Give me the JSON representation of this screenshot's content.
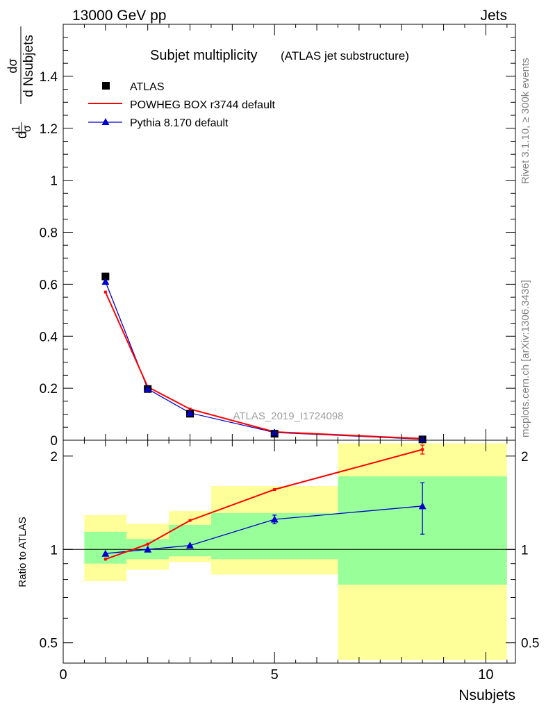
{
  "header": {
    "left": "13000 GeV pp",
    "right": "Jets"
  },
  "side": {
    "top": "Rivet 3.1.10, ≥ 300k events",
    "bottom": "mcplots.cern.ch [arXiv:1306.3436]"
  },
  "chart_data": {
    "type": "line",
    "title": "Subjet multiplicity",
    "subtitle": "(ATLAS jet substructure)",
    "watermark": "ATLAS_2019_I1724098",
    "xlabel": "Nsubjets",
    "ylabel": {
      "num1": "d",
      "frac1_num": "1",
      "frac1_den": "σ",
      "num2": "dσ",
      "den2": "d Nsubjets"
    },
    "ratio_ylabel": "Ratio to ATLAS",
    "xlim": [
      0,
      10.7
    ],
    "ylim": [
      0,
      1.6
    ],
    "ratio_ylim": [
      0.43,
      2.25
    ],
    "ratio_log": true,
    "x_ticks": [
      "0",
      "5",
      "10"
    ],
    "y_ticks": [
      "0",
      "0.2",
      "0.4",
      "0.6",
      "0.8",
      "1",
      "1.2",
      "1.4"
    ],
    "ratio_ticks": [
      "0.5",
      "1",
      "2"
    ],
    "legend_position": "top-left",
    "legend": [
      "ATLAS",
      "POWHEG BOX r3744 default",
      "Pythia 8.170 default"
    ],
    "colors": {
      "data": "#000000",
      "powheg": "#ff0000",
      "pythia": "#0000cc",
      "band_inner": "#99ff99",
      "band_outer": "#ffff99"
    },
    "data": {
      "x": [
        1,
        2,
        3,
        5,
        8.5
      ],
      "y": [
        0.63,
        0.197,
        0.102,
        0.025,
        0.003
      ]
    },
    "powheg": {
      "x": [
        1,
        2,
        3,
        5,
        8.5
      ],
      "y": [
        0.57,
        0.205,
        0.12,
        0.032,
        0.006
      ]
    },
    "pythia": {
      "x": [
        1,
        2,
        3,
        5,
        8.5
      ],
      "y": [
        0.61,
        0.197,
        0.105,
        0.03,
        0.004
      ]
    },
    "bands": [
      {
        "xlo": 0.5,
        "xhi": 1.5,
        "inner": [
          0.9,
          1.14
        ],
        "outer": [
          0.79,
          1.29
        ]
      },
      {
        "xlo": 1.5,
        "xhi": 2.5,
        "inner": [
          0.93,
          1.08
        ],
        "outer": [
          0.86,
          1.21
        ]
      },
      {
        "xlo": 2.5,
        "xhi": 3.5,
        "inner": [
          0.95,
          1.2
        ],
        "outer": [
          0.91,
          1.33
        ]
      },
      {
        "xlo": 3.5,
        "xhi": 6.5,
        "inner": [
          0.93,
          1.31
        ],
        "outer": [
          0.83,
          1.6
        ]
      },
      {
        "xlo": 6.5,
        "xhi": 10.5,
        "inner": [
          0.77,
          1.72
        ],
        "outer": [
          0.44,
          2.2
        ]
      }
    ],
    "ratio_powheg": {
      "x": [
        1,
        2,
        3,
        5,
        8.5
      ],
      "y": [
        0.93,
        1.04,
        1.24,
        1.56,
        2.1
      ],
      "err": [
        0,
        0,
        0,
        0,
        0.07
      ]
    },
    "ratio_pythia": {
      "x": [
        1,
        2,
        3,
        5,
        8.5
      ],
      "y": [
        0.97,
        1.0,
        1.03,
        1.25,
        1.38
      ],
      "err": [
        0,
        0,
        0,
        0.04,
        0.26
      ]
    }
  }
}
